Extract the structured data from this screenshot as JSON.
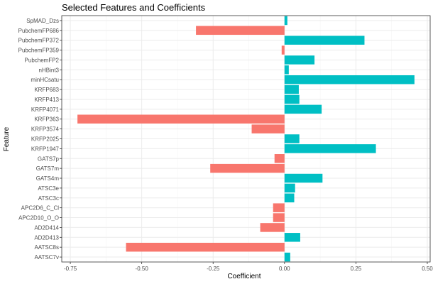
{
  "chart_data": {
    "type": "bar",
    "orientation": "horizontal",
    "title": "Selected Features and Coefficients",
    "xlabel": "Coefficient",
    "ylabel": "Feature",
    "xlim": [
      -0.78,
      0.51
    ],
    "x_ticks": [
      -0.75,
      -0.5,
      -0.25,
      0.0,
      0.25,
      0.5
    ],
    "x_tick_labels": [
      "-0.75",
      "-0.50",
      "-0.25",
      "0.00",
      "0.25",
      "0.50"
    ],
    "grid": true,
    "legend": "none",
    "colors": {
      "negative": "#F8766D",
      "positive": "#00BFC4",
      "grid_major": "#ebebeb",
      "grid_minor": "#f5f5f5",
      "panel_border": "#333333"
    },
    "categories": [
      "SpMAD_Dzs",
      "PubchemFP686",
      "PubchemFP372",
      "PubchemFP359",
      "PubchemFP2",
      "nHBint3",
      "minHCsatu",
      "KRFP683",
      "KRFP413",
      "KRFP4071",
      "KRFP363",
      "KRFP3574",
      "KRFP2025",
      "KRFP1947",
      "GATS7p",
      "GATS7m",
      "GATS4m",
      "ATSC3e",
      "ATSC3c",
      "APC2D6_C_Cl",
      "APC2D10_O_O",
      "AD2D414",
      "AD2D413",
      "AATSC8s",
      "AATSC7v"
    ],
    "values": [
      0.01,
      -0.31,
      0.28,
      -0.01,
      0.105,
      0.015,
      0.455,
      0.05,
      0.052,
      0.13,
      -0.725,
      -0.115,
      0.052,
      0.32,
      -0.035,
      -0.26,
      0.133,
      0.037,
      0.034,
      -0.04,
      -0.04,
      -0.085,
      0.055,
      -0.555,
      0.02
    ]
  }
}
